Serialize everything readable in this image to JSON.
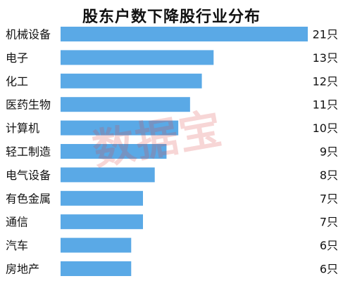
{
  "chart_data": {
    "type": "bar",
    "orientation": "horizontal",
    "title": "股东户数下降股行业分布",
    "categories": [
      "机械设备",
      "电子",
      "化工",
      "医药生物",
      "计算机",
      "轻工制造",
      "电气设备",
      "有色金属",
      "通信",
      "汽车",
      "房地产"
    ],
    "values": [
      21,
      13,
      12,
      11,
      10,
      9,
      8,
      7,
      7,
      6,
      6
    ],
    "value_labels": [
      "21只",
      "13只",
      "12只",
      "11只",
      "10只",
      "9只",
      "8只",
      "7只",
      "7只",
      "6只",
      "6只"
    ],
    "xlim": [
      0,
      21
    ],
    "grid": false,
    "bar_color": "#5aa9e6"
  },
  "watermark": "数据宝"
}
